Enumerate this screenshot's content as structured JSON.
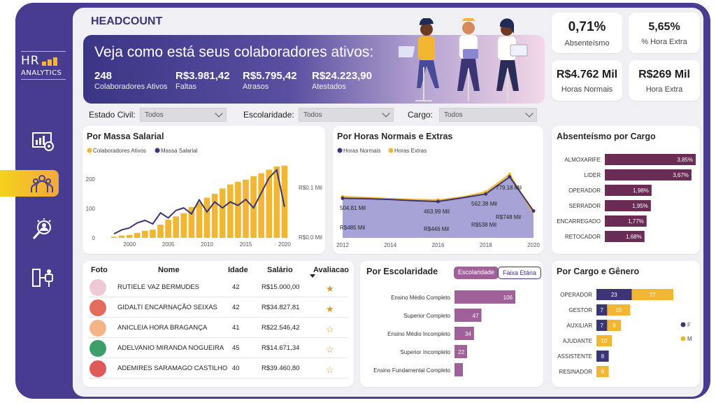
{
  "page": {
    "title": "HEADCOUNT"
  },
  "logo": {
    "main": "HR",
    "sub": "ANALYTICS"
  },
  "sidebar": {
    "items": [
      "dashboard-icon",
      "team-icon",
      "search-person-icon",
      "org-chart-icon"
    ],
    "active": 1
  },
  "banner": {
    "headline": "Veja como está seus colaboradores ativos:",
    "kpis": [
      {
        "value": "248",
        "label": "Colaboradores Ativos"
      },
      {
        "value": "R$3.981,42",
        "label": "Faltas"
      },
      {
        "value": "R$5.795,42",
        "label": "Atrasos"
      },
      {
        "value": "R$24.223,90",
        "label": "Atestados"
      }
    ]
  },
  "stats": {
    "absenteismo": {
      "value": "0,71%",
      "label": "Absenteísmo"
    },
    "hora_extra_pct": {
      "value": "5,65%",
      "label": "% Hora Extra"
    },
    "horas_normais": {
      "value": "R$4.762 Mil",
      "label": "Horas Normais"
    },
    "hora_extra": {
      "value": "R$269 Mil",
      "label": "Hora Extra"
    }
  },
  "filters": {
    "estado_civil": {
      "label": "Estado Civil:",
      "value": "Todos"
    },
    "escolaridade": {
      "label": "Escolaridade:",
      "value": "Todos"
    },
    "cargo": {
      "label": "Cargo:",
      "value": "Todos"
    }
  },
  "colors": {
    "navy": "#3b3575",
    "gold": "#f2b632",
    "plum": "#6a2c55",
    "lavender": "#a7a3d6",
    "mauve": "#a0609a"
  },
  "chart_data": [
    {
      "id": "massa",
      "type": "bar",
      "title": "Por Massa Salarial",
      "series": [
        {
          "name": "Colaboradores Ativos",
          "values": [
            1,
            2,
            4,
            8,
            10,
            17,
            24,
            28,
            45,
            62,
            73,
            84,
            105,
            120,
            137,
            150,
            168,
            182,
            191,
            198,
            210,
            220,
            232,
            243,
            246
          ]
        },
        {
          "name": "Massa Salarial",
          "values": [
            0.002,
            0.004,
            0.008,
            0.016,
            0.02,
            0.03,
            0.035,
            0.028,
            0.05,
            0.04,
            0.055,
            0.06,
            0.048,
            0.076,
            0.052,
            0.072,
            0.06,
            0.072,
            0.065,
            0.077,
            0.06,
            0.09,
            0.12,
            0.136,
            0.062
          ]
        }
      ],
      "x": [
        1996,
        1997,
        1998,
        1999,
        2000,
        2001,
        2002,
        2003,
        2004,
        2005,
        2006,
        2007,
        2008,
        2009,
        2010,
        2011,
        2012,
        2013,
        2014,
        2015,
        2016,
        2017,
        2018,
        2019,
        2020
      ],
      "xticks": [
        "2000",
        "2005",
        "2010",
        "2015",
        "2020"
      ],
      "yticks": [
        "0",
        "100",
        "200"
      ],
      "y2ticks": [
        "R$0.0 Mil",
        "R$0.1 Mil"
      ],
      "ylim": [
        0,
        250
      ]
    },
    {
      "id": "horas",
      "type": "area",
      "title": "Por Horas Normais e Extras",
      "x": [
        2012,
        2013,
        2014,
        2015,
        2016,
        2017,
        2018,
        2019,
        2020
      ],
      "xticks": [
        "2012",
        "2014",
        "2016",
        "2018",
        "2020"
      ],
      "series": [
        {
          "name": "Horas Normais",
          "values": [
            485,
            480,
            470,
            455,
            446,
            490,
            538,
            748,
            330
          ]
        },
        {
          "name": "Horas Extras",
          "values": [
            504.81,
            495,
            480,
            470,
            463.99,
            500,
            562.38,
            779.18,
            300
          ]
        }
      ],
      "labels": {
        "extras": [
          "504.81 Mil",
          "463.99 Mil",
          "562.38 Mil",
          "779.18 Mil"
        ],
        "normais": [
          "R$485 Mil",
          "R$446 Mil",
          "R$538 Mil",
          "R$748 Mil"
        ]
      },
      "ylim": [
        0,
        900
      ]
    },
    {
      "id": "absenteismo",
      "type": "bar",
      "title": "Absenteísmo por Cargo",
      "categories": [
        "ALMOXARIFE",
        "LIDER",
        "OPERADOR",
        "SERRADOR",
        "ENCARREGADO",
        "RETOCADOR"
      ],
      "values": [
        3.85,
        3.67,
        1.98,
        1.95,
        1.77,
        1.68
      ],
      "labels": [
        "3,85%",
        "3,67%",
        "1,98%",
        "1,95%",
        "1,77%",
        "1,68%"
      ]
    },
    {
      "id": "escolaridade",
      "type": "bar",
      "title": "Por Escolaridade",
      "categories": [
        "Ensino Médio Completo",
        "Superior Completo",
        "Ensino Médio Incompleto",
        "Superior Incompleto",
        "Ensino Fundamental Completo"
      ],
      "values": [
        106,
        47,
        34,
        22,
        0
      ],
      "labels": [
        "106",
        "47",
        "34",
        "22",
        ""
      ]
    },
    {
      "id": "genero",
      "type": "bar",
      "title": "Por Cargo e Gênero",
      "categories": [
        "OPERADOR",
        "GESTOR",
        "AUXILIAR",
        "AJUDANTE",
        "ASSISTENTE",
        "RESINADOR"
      ],
      "series": [
        {
          "name": "F",
          "values": [
            23,
            7,
            7,
            0,
            8,
            0
          ]
        },
        {
          "name": "M",
          "values": [
            27,
            15,
            9,
            10,
            0,
            8
          ]
        }
      ],
      "labels_f": [
        "23",
        "7",
        "7",
        "",
        "8",
        ""
      ],
      "labels_m": [
        "27",
        "15",
        "9",
        "10",
        "",
        "8"
      ]
    }
  ],
  "escolaridade_toggle": {
    "a": "Escolaridade",
    "b": "Faixa Etária"
  },
  "table": {
    "headers": [
      "Foto",
      "Nome",
      "Idade",
      "Salário",
      "Avaliacao"
    ],
    "rows": [
      {
        "name": "RUTIELE VAZ BERMUDES",
        "age": "42",
        "salary": "R$15.000,00",
        "rating": "★",
        "avatar": "#f0c9d6"
      },
      {
        "name": "GIDALTI ENCARNAÇÃO SEIXAS",
        "age": "42",
        "salary": "R$34.827,81",
        "rating": "★",
        "avatar": "#e46a5b"
      },
      {
        "name": "ANICLEIA HORA BRAGANÇA",
        "age": "41",
        "salary": "R$22.546,42",
        "rating": "☆",
        "avatar": "#f5b388"
      },
      {
        "name": "ADELVANIO MIRANDA NOGUEIRA",
        "age": "45",
        "salary": "R$14.671,34",
        "rating": "☆",
        "avatar": "#3c9e6a"
      },
      {
        "name": "ADEMIRES SARAMAGO CASTILHO",
        "age": "40",
        "salary": "R$39.460,80",
        "rating": "☆",
        "avatar": "#e05a5a"
      }
    ]
  }
}
